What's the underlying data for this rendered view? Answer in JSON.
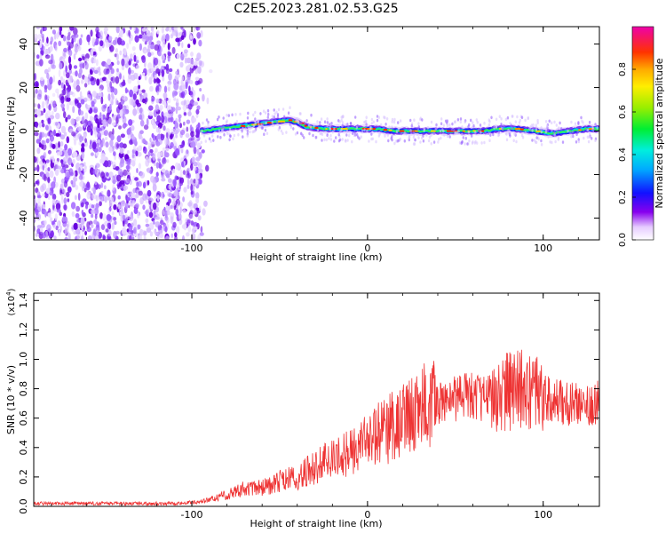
{
  "title": "C2E5.2023.281.02.53.G25",
  "chart_data": [
    {
      "type": "heatmap",
      "xlabel": "Height of straight line (km)",
      "ylabel": "Frequency (Hz)",
      "xlim": [
        -190,
        132
      ],
      "ylim": [
        -50,
        48
      ],
      "xticks": [
        -100,
        0,
        100
      ],
      "xtick_labels": [
        "-100",
        "0",
        "100"
      ],
      "yticks": [
        -40,
        -20,
        0,
        20,
        40
      ],
      "ytick_labels": [
        "-40",
        "-20",
        "0",
        "20",
        "40"
      ],
      "noise_region_x": [
        -190,
        -95
      ],
      "ridge": {
        "x": [
          -95,
          -85,
          -75,
          -65,
          -55,
          -45,
          -40,
          -35,
          -25,
          -15,
          -5,
          5,
          15,
          25,
          35,
          45,
          55,
          65,
          75,
          85,
          95,
          105,
          115,
          125,
          132
        ],
        "y": [
          0,
          1,
          2,
          3,
          4,
          5,
          4,
          2,
          1,
          1,
          1,
          1,
          0,
          0,
          0,
          0,
          0,
          0,
          1,
          1,
          0,
          -1,
          0,
          1,
          1
        ]
      },
      "colorbar": {
        "label": "Normalized spectral amplitude",
        "range": [
          0,
          1
        ],
        "ticks": [
          0.0,
          0.2,
          0.4,
          0.6,
          0.8
        ],
        "tick_labels": [
          "0.0",
          "0.2",
          "0.4",
          "0.6",
          "0.8"
        ]
      },
      "grid": false
    },
    {
      "type": "line",
      "xlabel": "Height of straight line (km)",
      "ylabel": "SNR (10 * v/v)",
      "y_multiplier": "(x10",
      "y_multiplier_exp": "4",
      "y_multiplier_close": ")",
      "xlim": [
        -190,
        132
      ],
      "ylim": [
        0,
        1.45
      ],
      "xticks": [
        -100,
        0,
        100
      ],
      "xtick_labels": [
        "-100",
        "0",
        "100"
      ],
      "yticks": [
        0.0,
        0.2,
        0.4,
        0.6,
        0.8,
        1.0,
        1.2,
        1.4
      ],
      "ytick_labels": [
        "0.0",
        "0.2",
        "0.4",
        "0.6",
        "0.8",
        "1.0",
        "1.2",
        "1.4"
      ],
      "color": "#ee3333",
      "series": [
        {
          "x": [
            -190,
            -170,
            -150,
            -130,
            -110,
            -95,
            -88,
            -80,
            -72,
            -64,
            -56,
            -48,
            -40,
            -32,
            -24,
            -16,
            -8,
            0,
            8,
            16,
            24,
            32,
            40,
            48,
            56,
            64,
            72,
            80,
            88,
            96,
            104,
            112,
            120,
            132
          ],
          "values": [
            0.02,
            0.02,
            0.02,
            0.02,
            0.02,
            0.03,
            0.05,
            0.08,
            0.12,
            0.12,
            0.14,
            0.18,
            0.2,
            0.25,
            0.3,
            0.33,
            0.38,
            0.45,
            0.5,
            0.55,
            0.62,
            0.68,
            0.7,
            0.73,
            0.75,
            0.74,
            0.76,
            0.78,
            0.8,
            0.76,
            0.72,
            0.7,
            0.7,
            0.71
          ]
        }
      ],
      "grid": false
    }
  ]
}
